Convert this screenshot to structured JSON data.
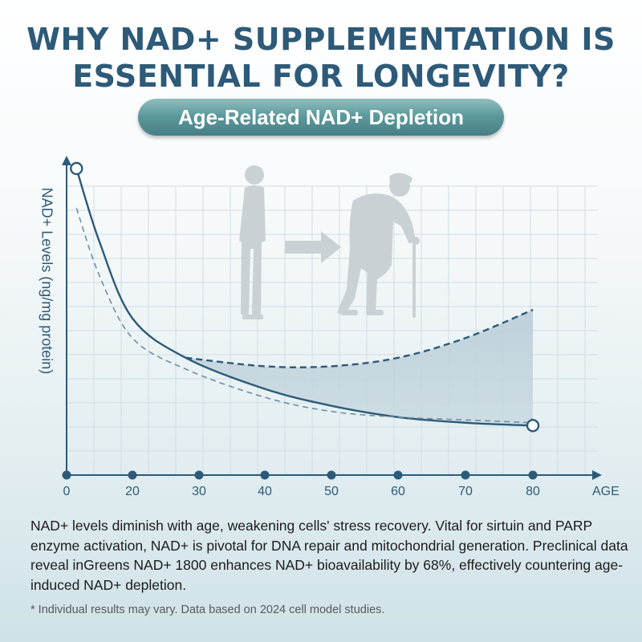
{
  "header": {
    "title_line1": "WHY NAD+ SUPPLEMENTATION IS",
    "title_line2": "ESSENTIAL FOR LONGEVITY?",
    "subtitle": "Age-Related NAD+ Depletion"
  },
  "chart_data": {
    "type": "line",
    "title": "Age-Related NAD+ Depletion",
    "xlabel": "AGE",
    "ylabel": "NAD+ Levels (ng/mg protein)",
    "x_ticks": [
      "0",
      "20",
      "30",
      "40",
      "50",
      "60",
      "70",
      "80"
    ],
    "xlim": [
      0,
      80
    ],
    "grid": true,
    "legend": "none",
    "series": [
      {
        "style": "solid",
        "x": [
          3,
          10,
          20,
          28,
          40,
          50,
          60,
          70,
          80
        ],
        "y": [
          100,
          74,
          47,
          33,
          22,
          16,
          12,
          10,
          9
        ]
      },
      {
        "style": "dashed",
        "x": [
          3,
          10,
          20,
          28,
          40,
          50,
          60,
          70,
          80
        ],
        "y": [
          86,
          62,
          40,
          29,
          19,
          14,
          12,
          11,
          10
        ]
      },
      {
        "style": "dashed",
        "x": [
          28,
          40,
          50,
          60,
          70,
          80
        ],
        "y": [
          33,
          30,
          30,
          33,
          40,
          50
        ]
      }
    ],
    "shaded_region": {
      "x_from": 28,
      "x_to": 80
    },
    "illustration": "young person walking to elderly person with cane"
  },
  "body": {
    "description": "NAD+ levels diminish with age, weakening cells' stress recovery. Vital for sirtuin and PARP enzyme activation, NAD+ is pivotal for DNA repair and mitochondrial generation. Preclinical data reveal inGreens NAD+ 1800 enhances NAD+ bioavailability by 68%, effectively countering age-induced NAD+ depletion.",
    "footnote": "* Individual results may vary. Data based on 2024 cell model studies."
  },
  "colors": {
    "title": "#2d5a78",
    "axis": "#2d5a78",
    "grid": "#cfdde4",
    "shade": "#a9c0cf",
    "figure": "#c9d1d4"
  }
}
